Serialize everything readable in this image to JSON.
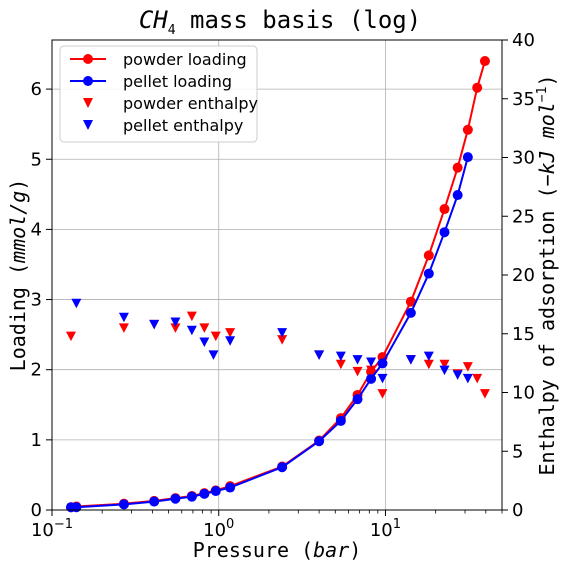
{
  "chart_data": {
    "type": "line+scatter",
    "title": "CH4 mass basis (log)",
    "title_parts": {
      "base": "CH",
      "sub": "4",
      "rest": " mass basis (log)"
    },
    "xlabel": "Pressure (bar)",
    "xlabel_parts": {
      "text": "Pressure ",
      "open": "(",
      "unit": "bar",
      "close": ")"
    },
    "ylabel_left": "Loading (mmol/g)",
    "ylabel_left_parts": {
      "text": "Loading ",
      "open": "(",
      "unit": "mmol/g",
      "close": ")"
    },
    "ylabel_right": "Enthalpy of adsorption (-kJ mol^-1)",
    "ylabel_right_parts": {
      "text": "Enthalpy of adsorption ",
      "open": "(",
      "minus": "−",
      "unit": "kJ mol",
      "exp": "−1",
      "close": ")"
    },
    "x_scale": "log",
    "xlim": [
      0.1,
      50
    ],
    "ylim_left": [
      0,
      6.7
    ],
    "ylim_right": [
      0,
      40
    ],
    "x_ticks": [
      {
        "value": 0.1,
        "base": "10",
        "exp": "−1"
      },
      {
        "value": 1,
        "base": "10",
        "exp": "0"
      },
      {
        "value": 10,
        "base": "10",
        "exp": "1"
      }
    ],
    "y_ticks_left": [
      "0",
      "1",
      "2",
      "3",
      "4",
      "5",
      "6"
    ],
    "y_ticks_right": [
      "0",
      "5",
      "10",
      "15",
      "20",
      "25",
      "30",
      "35",
      "40"
    ],
    "grid": true,
    "legend_position": "top-left",
    "series": [
      {
        "name": "powder loading",
        "axis": "left",
        "style": "line-marker",
        "color": "#ff0000",
        "x": [
          0.13,
          0.14,
          0.27,
          0.41,
          0.55,
          0.69,
          0.82,
          0.96,
          1.17,
          2.4,
          4.0,
          5.4,
          6.8,
          8.2,
          9.6,
          14.2,
          18.2,
          22.6,
          27.1,
          31.2,
          35.5,
          39.5
        ],
        "y": [
          0.04,
          0.05,
          0.09,
          0.13,
          0.17,
          0.2,
          0.24,
          0.28,
          0.34,
          0.62,
          0.99,
          1.31,
          1.64,
          1.97,
          2.18,
          2.97,
          3.63,
          4.29,
          4.88,
          5.42,
          6.02,
          6.4
        ]
      },
      {
        "name": "pellet loading",
        "axis": "left",
        "style": "line-marker",
        "color": "#0000ff",
        "x": [
          0.13,
          0.14,
          0.27,
          0.41,
          0.55,
          0.69,
          0.82,
          0.96,
          1.17,
          2.4,
          4.0,
          5.4,
          6.8,
          8.2,
          9.6,
          14.2,
          18.2,
          22.6,
          27.1,
          31.2
        ],
        "y": [
          0.04,
          0.04,
          0.08,
          0.12,
          0.16,
          0.19,
          0.23,
          0.27,
          0.32,
          0.61,
          0.98,
          1.27,
          1.58,
          1.87,
          2.09,
          2.81,
          3.37,
          3.96,
          4.49,
          5.03
        ]
      },
      {
        "name": "powder enthalpy",
        "axis": "right",
        "style": "triangle-down",
        "color": "#ff0000",
        "x": [
          0.13,
          0.27,
          0.41,
          0.55,
          0.69,
          0.82,
          0.96,
          1.17,
          2.4,
          4.0,
          5.4,
          6.8,
          8.2,
          9.6,
          14.2,
          18.2,
          22.6,
          27.1,
          31.2,
          35.5,
          39.5
        ],
        "y": [
          14.8,
          15.5,
          15.8,
          15.5,
          16.5,
          15.5,
          14.8,
          15.1,
          14.5,
          13.2,
          12.4,
          11.8,
          11.9,
          9.9,
          12.8,
          12.4,
          12.4,
          11.6,
          12.2,
          11.2,
          9.9
        ]
      },
      {
        "name": "pellet enthalpy",
        "axis": "right",
        "style": "triangle-down",
        "color": "#0000ff",
        "x": [
          0.14,
          0.27,
          0.41,
          0.55,
          0.69,
          0.82,
          0.93,
          1.17,
          2.4,
          4.0,
          5.4,
          6.8,
          8.2,
          9.6,
          14.2,
          18.2,
          22.6,
          27.1,
          31.2
        ],
        "y": [
          17.6,
          16.4,
          15.8,
          16.0,
          15.3,
          14.3,
          13.2,
          14.4,
          15.1,
          13.2,
          13.1,
          12.8,
          12.6,
          11.2,
          12.8,
          13.1,
          11.9,
          11.5,
          11.2
        ]
      }
    ]
  }
}
